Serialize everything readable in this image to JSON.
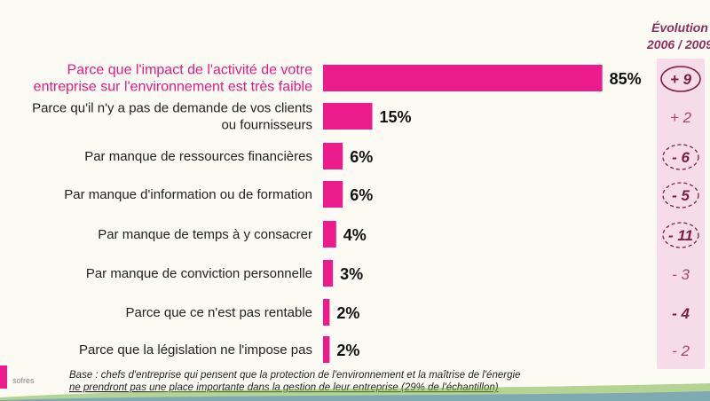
{
  "chart_data": {
    "type": "bar",
    "orientation": "horizontal",
    "categories": [
      "Parce que l'impact de l'activité de votre entreprise sur l'environnement est très faible",
      "Parce qu'il n'y a pas de demande de vos clients ou fournisseurs",
      "Par manque de ressources financières",
      "Par manque d'information ou de formation",
      "Par manque de temps à y consacrer",
      "Par manque de conviction personnelle",
      "Parce que ce n'est pas rentable",
      "Parce que la législation ne l'impose pas"
    ],
    "category_lines": [
      [
        "Parce que l'impact de l'activité de votre",
        "entreprise sur l'environnement est très faible"
      ],
      [
        "Parce qu'il n'y a pas de demande de vos clients",
        "ou fournisseurs"
      ],
      [
        "Par manque de ressources financières"
      ],
      [
        "Par manque d'information ou de formation"
      ],
      [
        "Par manque de temps à y consacrer"
      ],
      [
        "Par manque de conviction personnelle"
      ],
      [
        "Parce que ce n'est pas rentable"
      ],
      [
        "Parce que la législation ne l'impose pas"
      ]
    ],
    "values": [
      85,
      15,
      6,
      6,
      4,
      3,
      2,
      2
    ],
    "value_labels": [
      "85%",
      "15%",
      "6%",
      "6%",
      "4%",
      "3%",
      "2%",
      "2%"
    ],
    "unit": "%",
    "xlim": [
      0,
      100
    ],
    "bar_color": "#ec1c8c",
    "evolution_title_line1": "Évolution",
    "evolution_title_line2": "2006 / 2009",
    "evolution": [
      "+ 9",
      "+ 2",
      "- 6",
      "- 5",
      "- 11",
      "- 3",
      "- 4",
      "- 2"
    ],
    "evolution_circled": [
      true,
      false,
      true,
      true,
      true,
      false,
      false,
      false
    ],
    "evolution_bold": [
      true,
      false,
      true,
      true,
      true,
      false,
      true,
      false
    ],
    "evolution_panel_color": "#f6dce9",
    "highlight_category_color": "#e5197f"
  },
  "footnote": {
    "line1": "Base : chefs d'entreprise qui pensent que la protection de l'environnement et la maîtrise de l'énergie",
    "line2": "ne prendront pas une place importante dans la gestion de leur entreprise (29% de l'échantillon)"
  },
  "logo": {
    "text": "sofres"
  }
}
